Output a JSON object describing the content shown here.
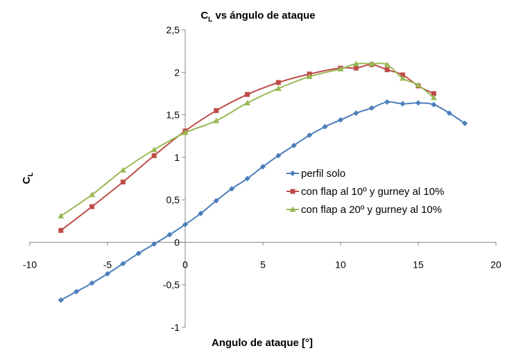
{
  "chart_data": {
    "type": "line",
    "title_main": "C",
    "title_sub": "L",
    "title_rest": " vs ángulo de ataque",
    "xlabel": "Angulo de ataque [°]",
    "ylabel_main": "C",
    "ylabel_sub": "L",
    "xlim": [
      -10,
      20
    ],
    "ylim": [
      -1,
      2.5
    ],
    "x_ticks": [
      -10,
      -5,
      0,
      5,
      10,
      15,
      20
    ],
    "x_tick_labels": [
      "-10",
      "-5",
      "0",
      "5",
      "10",
      "15",
      "20"
    ],
    "y_ticks": [
      -1,
      -0.5,
      0,
      0.5,
      1,
      1.5,
      2,
      2.5
    ],
    "y_tick_labels": [
      "-1",
      "-0,5",
      "0",
      "0,5",
      "1",
      "1,5",
      "2",
      "2,5"
    ],
    "grid": false,
    "legend_position": "center-right",
    "series": [
      {
        "name": "perfil solo",
        "color": "#4a7ebb",
        "marker": "diamond",
        "points": [
          [
            -8,
            -0.68
          ],
          [
            -7,
            -0.58
          ],
          [
            -6,
            -0.48
          ],
          [
            -5,
            -0.37
          ],
          [
            -4,
            -0.25
          ],
          [
            -3,
            -0.13
          ],
          [
            -2,
            -0.02
          ],
          [
            -1,
            0.09
          ],
          [
            0,
            0.21
          ],
          [
            1,
            0.34
          ],
          [
            2,
            0.49
          ],
          [
            3,
            0.63
          ],
          [
            4,
            0.75
          ],
          [
            5,
            0.89
          ],
          [
            6,
            1.02
          ],
          [
            7,
            1.14
          ],
          [
            8,
            1.26
          ],
          [
            9,
            1.36
          ],
          [
            10,
            1.44
          ],
          [
            11,
            1.52
          ],
          [
            12,
            1.58
          ],
          [
            13,
            1.65
          ],
          [
            14,
            1.63
          ],
          [
            15,
            1.64
          ],
          [
            16,
            1.62
          ],
          [
            17,
            1.52
          ],
          [
            18,
            1.4
          ]
        ]
      },
      {
        "name": "con flap al 10º y gurney al 10%",
        "color": "#be4b48",
        "marker": "square",
        "points": [
          [
            -8,
            0.14
          ],
          [
            -6,
            0.42
          ],
          [
            -4,
            0.71
          ],
          [
            -2,
            1.02
          ],
          [
            0,
            1.31
          ],
          [
            2,
            1.55
          ],
          [
            4,
            1.74
          ],
          [
            6,
            1.88
          ],
          [
            8,
            1.98
          ],
          [
            10,
            2.05
          ],
          [
            11,
            2.05
          ],
          [
            12,
            2.09
          ],
          [
            13,
            2.03
          ],
          [
            14,
            1.97
          ],
          [
            15,
            1.84
          ],
          [
            16,
            1.75
          ]
        ]
      },
      {
        "name": "con flap a 20º y gurney al 10%",
        "color": "#98b954",
        "marker": "triangle",
        "points": [
          [
            -8,
            0.31
          ],
          [
            -6,
            0.56
          ],
          [
            -4,
            0.85
          ],
          [
            -2,
            1.09
          ],
          [
            0,
            1.29
          ],
          [
            2,
            1.43
          ],
          [
            4,
            1.64
          ],
          [
            6,
            1.81
          ],
          [
            8,
            1.95
          ],
          [
            10,
            2.04
          ],
          [
            11,
            2.1
          ],
          [
            12,
            2.1
          ],
          [
            13,
            2.09
          ],
          [
            14,
            1.93
          ],
          [
            15,
            1.85
          ],
          [
            16,
            1.7
          ]
        ]
      }
    ]
  }
}
